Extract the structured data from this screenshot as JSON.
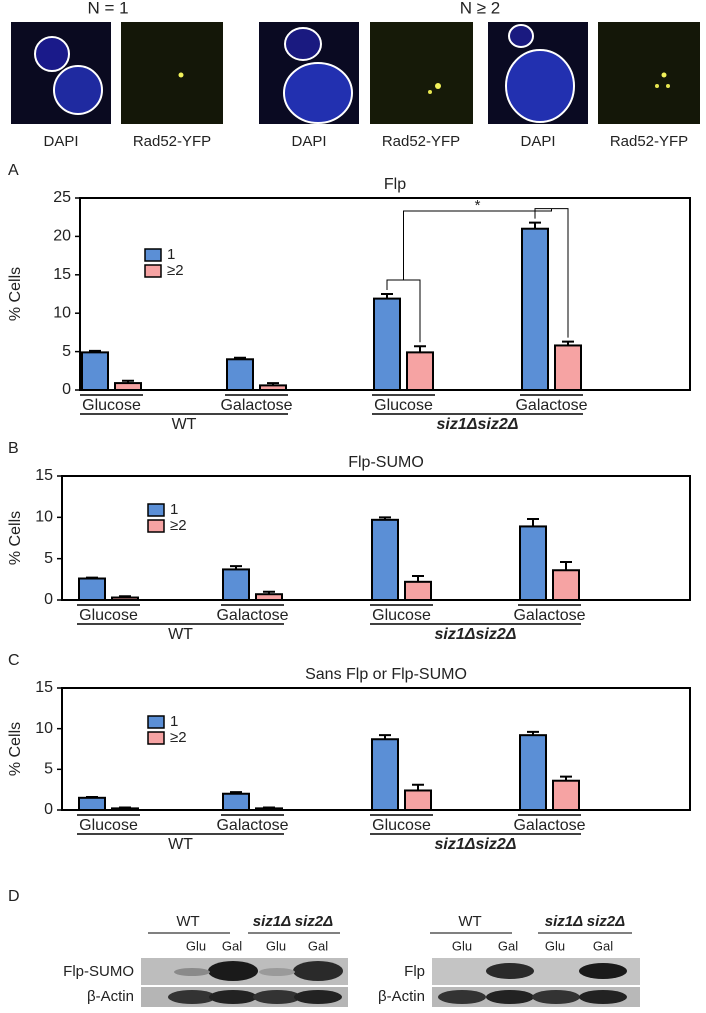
{
  "microscopy": {
    "headers": [
      "N = 1",
      "N ≥ 2"
    ],
    "panels": [
      "DAPI",
      "Rad52-YFP",
      "DAPI",
      "Rad52-YFP",
      "DAPI",
      "Rad52-YFP"
    ]
  },
  "chart_data": [
    {
      "type": "bar",
      "panel": "A",
      "title": "Flp",
      "ylabel": "% Cells",
      "categories": [
        "Glucose",
        "Galactose",
        "Glucose",
        "Galactose"
      ],
      "groups": [
        "WT",
        "siz1Δsiz2Δ"
      ],
      "series": [
        {
          "name": "1",
          "color": "#5b8fd6",
          "values": [
            4.9,
            4.0,
            11.9,
            21.0
          ],
          "errors": [
            0.2,
            0.2,
            0.6,
            0.8
          ]
        },
        {
          "name": "≥2",
          "color": "#f6a3a3",
          "values": [
            0.9,
            0.6,
            4.9,
            5.8
          ],
          "errors": [
            0.3,
            0.3,
            0.8,
            0.5
          ]
        }
      ],
      "ylim": [
        0,
        25
      ],
      "yticks": [
        0,
        5,
        10,
        15,
        20,
        25
      ],
      "annotations": [
        "*"
      ]
    },
    {
      "type": "bar",
      "panel": "B",
      "title": "Flp-SUMO",
      "ylabel": "% Cells",
      "categories": [
        "Glucose",
        "Galactose",
        "Glucose",
        "Galactose"
      ],
      "groups": [
        "WT",
        "siz1Δsiz2Δ"
      ],
      "series": [
        {
          "name": "1",
          "color": "#5b8fd6",
          "values": [
            2.6,
            3.7,
            9.7,
            8.9
          ],
          "errors": [
            0.1,
            0.4,
            0.3,
            0.9
          ]
        },
        {
          "name": "≥2",
          "color": "#f6a3a3",
          "values": [
            0.3,
            0.7,
            2.2,
            3.6
          ],
          "errors": [
            0.15,
            0.3,
            0.7,
            1.0
          ]
        }
      ],
      "ylim": [
        0,
        15
      ],
      "yticks": [
        0,
        5,
        10,
        15
      ]
    },
    {
      "type": "bar",
      "panel": "C",
      "title": "Sans Flp or Flp-SUMO",
      "ylabel": "% Cells",
      "categories": [
        "Glucose",
        "Galactose",
        "Glucose",
        "Galactose"
      ],
      "groups": [
        "WT",
        "siz1Δsiz2Δ"
      ],
      "series": [
        {
          "name": "1",
          "color": "#5b8fd6",
          "values": [
            1.5,
            2.0,
            8.7,
            9.2
          ],
          "errors": [
            0.1,
            0.2,
            0.5,
            0.4
          ]
        },
        {
          "name": "≥2",
          "color": "#f6a3a3",
          "values": [
            0.2,
            0.2,
            2.4,
            3.6
          ],
          "errors": [
            0.1,
            0.1,
            0.7,
            0.5
          ]
        }
      ],
      "ylim": [
        0,
        15
      ],
      "yticks": [
        0,
        5,
        10,
        15
      ]
    }
  ],
  "blot": {
    "panel": "D",
    "left": {
      "groups": [
        "WT",
        "siz1Δ siz2Δ"
      ],
      "lanes": [
        "Glu",
        "Gal",
        "Glu",
        "Gal"
      ],
      "rows": [
        "Flp-SUMO",
        "β-Actin"
      ]
    },
    "right": {
      "groups": [
        "WT",
        "siz1Δ siz2Δ"
      ],
      "lanes": [
        "Glu",
        "Gal",
        "Glu",
        "Gal"
      ],
      "rows": [
        "Flp",
        "β-Actin"
      ]
    }
  }
}
